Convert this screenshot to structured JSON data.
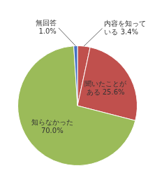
{
  "chart_data": {
    "type": "pie",
    "values": [
      3.4,
      25.6,
      70.0,
      1.0
    ],
    "value_labels": [
      "内容を知って\nいる 3.4%",
      "聞いたことが\nある 25.6%",
      "知らなかった\n70.0%",
      "無回答\n1.0%"
    ],
    "colors": [
      "#c0504d",
      "#c0504d",
      "#9bbb59",
      "#4472c4"
    ],
    "data_labels": true
  }
}
